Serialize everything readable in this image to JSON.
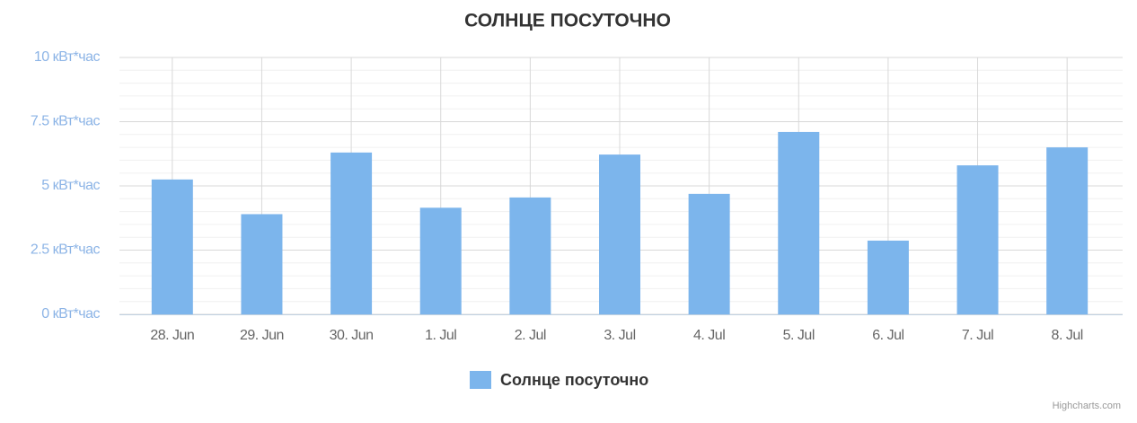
{
  "chart_data": {
    "type": "bar",
    "title": "СОЛНЦЕ ПОСУТОЧНО",
    "categories": [
      "28. Jun",
      "29. Jun",
      "30. Jun",
      "1. Jul",
      "2. Jul",
      "3. Jul",
      "4. Jul",
      "5. Jul",
      "6. Jul",
      "7. Jul",
      "8. Jul"
    ],
    "series": [
      {
        "name": "Солнце посуточно",
        "color": "#7cb5ec",
        "values": [
          5.25,
          3.9,
          6.3,
          4.15,
          4.55,
          6.22,
          4.69,
          7.1,
          2.87,
          5.8,
          6.5
        ]
      }
    ],
    "ylim": [
      0,
      10
    ],
    "yticks": [
      {
        "value": 0,
        "label": "0 кВт*час"
      },
      {
        "value": 2.5,
        "label": "2.5 кВт*час"
      },
      {
        "value": 5,
        "label": "5 кВт*час"
      },
      {
        "value": 7.5,
        "label": "7.5 кВт*час"
      },
      {
        "value": 10,
        "label": "10 кВт*час"
      }
    ],
    "grid": true,
    "minor_grid": true,
    "x_grid": true,
    "legend": "bottom",
    "credits": "Highcharts.com"
  }
}
